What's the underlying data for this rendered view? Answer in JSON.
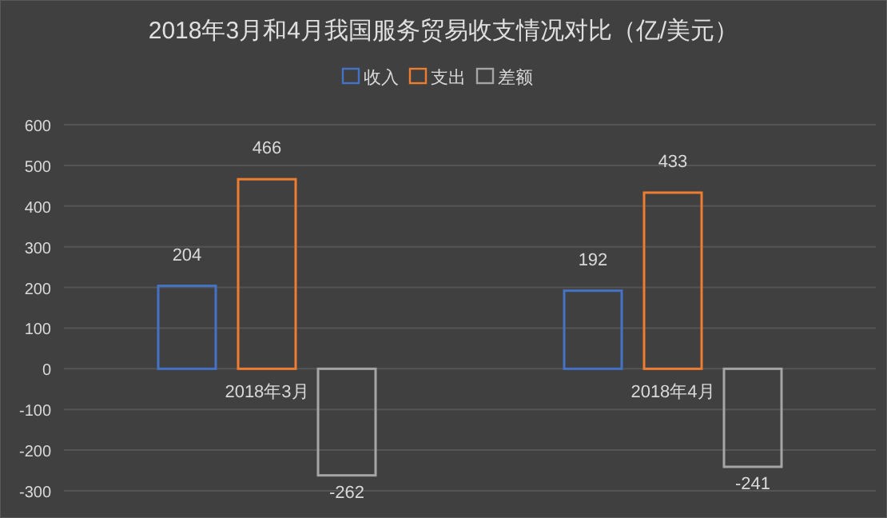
{
  "chart_data": {
    "type": "bar",
    "title": "2018年3月和4月我国服务贸易收支情况对比（亿/美元）",
    "categories": [
      "2018年3月",
      "2018年4月"
    ],
    "series": [
      {
        "name": "收入",
        "color": "#4472c4",
        "values": [
          204,
          192
        ]
      },
      {
        "name": "支出",
        "color": "#ed7d31",
        "values": [
          466,
          433
        ]
      },
      {
        "name": "差额",
        "color": "#a5a5a5",
        "values": [
          -262,
          -241
        ]
      }
    ],
    "ylim": [
      -300,
      600
    ],
    "yticks": [
      -300,
      -200,
      -100,
      0,
      100,
      200,
      300,
      400,
      500,
      600
    ],
    "grid": "y",
    "legend": "top",
    "data_labels": true
  }
}
